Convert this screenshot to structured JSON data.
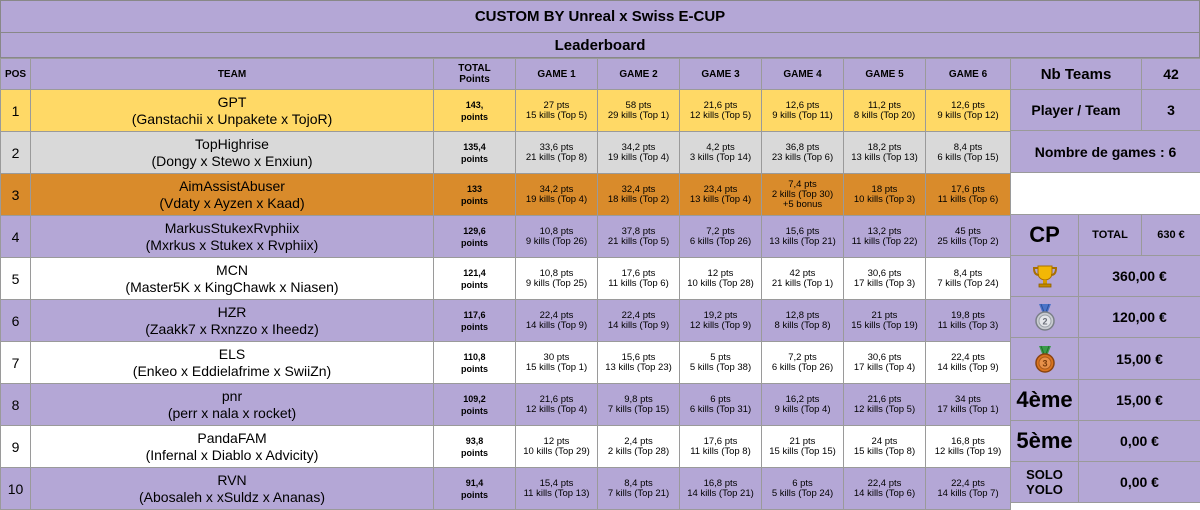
{
  "title": "CUSTOM BY Unreal x Swiss E-CUP",
  "subtitle": "Leaderboard",
  "headers": {
    "pos": "POS",
    "team": "TEAM",
    "total_line1": "TOTAL",
    "total_line2": "Points",
    "games": [
      "GAME 1",
      "GAME 2",
      "GAME 3",
      "GAME 4",
      "GAME 5",
      "GAME 6"
    ]
  },
  "rows": [
    {
      "pos": "1",
      "name": "GPT",
      "players": "(Ganstachii x Unpakete x TojoR)",
      "total": "143,",
      "total_unit": "points",
      "style": "gold",
      "games": [
        [
          "27 pts",
          "15 kills (Top 5)"
        ],
        [
          "58 pts",
          "29 kills (Top 1)"
        ],
        [
          "21,6 pts",
          "12 kills (Top 5)"
        ],
        [
          "12,6 pts",
          "9 kills (Top 11)"
        ],
        [
          "11,2 pts",
          "8 kills (Top 20)"
        ],
        [
          "12,6 pts",
          "9 kills (Top 12)"
        ]
      ]
    },
    {
      "pos": "2",
      "name": "TopHighrise",
      "players": "(Dongy x Stewo x Enxiun)",
      "total": "135,4",
      "total_unit": "points",
      "style": "silver",
      "games": [
        [
          "33,6 pts",
          "21 kills (Top 8)"
        ],
        [
          "34,2 pts",
          "19 kills (Top 4)"
        ],
        [
          "4,2 pts",
          "3 kills (Top 14)"
        ],
        [
          "36,8 pts",
          "23 kills (Top 6)"
        ],
        [
          "18,2 pts",
          "13 kills (Top 13)"
        ],
        [
          "8,4 pts",
          "6 kills (Top 15)"
        ]
      ]
    },
    {
      "pos": "3",
      "name": "AimAssistAbuser",
      "players": "(Vdaty x Ayzen x Kaad)",
      "total": "133",
      "total_unit": "points",
      "style": "bronze",
      "games": [
        [
          "34,2 pts",
          "19 kills (Top 4)"
        ],
        [
          "32,4 pts",
          "18 kills (Top 2)"
        ],
        [
          "23,4 pts",
          "13 kills (Top 4)"
        ],
        [
          "7,4 pts",
          "2 kills (Top 30)",
          "+5 bonus"
        ],
        [
          "18 pts",
          "10 kills (Top 3)"
        ],
        [
          "17,6 pts",
          "11 kills (Top 6)"
        ]
      ]
    },
    {
      "pos": "4",
      "name": "MarkusStukexRvphiix",
      "players": "(Mxrkus x Stukex x Rvphiix)",
      "total": "129,6",
      "total_unit": "points",
      "style": "purple",
      "games": [
        [
          "10,8 pts",
          "9 kills (Top 26)"
        ],
        [
          "37,8 pts",
          "21 kills (Top 5)"
        ],
        [
          "7,2 pts",
          "6 kills (Top 26)"
        ],
        [
          "15,6 pts",
          "13 kills (Top 21)"
        ],
        [
          "13,2 pts",
          "11 kills (Top 22)"
        ],
        [
          "45 pts",
          "25 kills (Top 2)"
        ]
      ]
    },
    {
      "pos": "5",
      "name": "MCN",
      "players": "(Master5K x KingChawk x Niasen)",
      "total": "121,4",
      "total_unit": "points",
      "style": "white",
      "games": [
        [
          "10,8 pts",
          "9 kills (Top 25)"
        ],
        [
          "17,6 pts",
          "11 kills (Top 6)"
        ],
        [
          "12 pts",
          "10 kills (Top 28)"
        ],
        [
          "42 pts",
          "21 kills (Top 1)"
        ],
        [
          "30,6 pts",
          "17 kills (Top 3)"
        ],
        [
          "8,4 pts",
          "7 kills (Top 24)"
        ]
      ]
    },
    {
      "pos": "6",
      "name": "HZR",
      "players": "(Zaakk7 x Rxnzzo x Iheedz)",
      "total": "117,6",
      "total_unit": "points",
      "style": "purple",
      "games": [
        [
          "22,4 pts",
          "14 kills (Top 9)"
        ],
        [
          "22,4 pts",
          "14 kills (Top 9)"
        ],
        [
          "19,2 pts",
          "12 kills (Top 9)"
        ],
        [
          "12,8 pts",
          "8 kills (Top 8)"
        ],
        [
          "21 pts",
          "15 kills (Top 19)"
        ],
        [
          "19,8 pts",
          "11 kills (Top 3)"
        ]
      ]
    },
    {
      "pos": "7",
      "name": "ELS",
      "players": "(Enkeo x Eddielafrime x SwiiZn)",
      "total": "110,8",
      "total_unit": "points",
      "style": "white",
      "games": [
        [
          "30 pts",
          "15 kills (Top 1)"
        ],
        [
          "15,6 pts",
          "13 kills (Top 23)"
        ],
        [
          "5 pts",
          "5 kills (Top 38)"
        ],
        [
          "7,2 pts",
          "6 kills (Top 26)"
        ],
        [
          "30,6 pts",
          "17 kills (Top 4)"
        ],
        [
          "22,4 pts",
          "14 kills (Top 9)"
        ]
      ]
    },
    {
      "pos": "8",
      "name": "pnr",
      "players": "(perr x nala x rocket)",
      "total": "109,2",
      "total_unit": "points",
      "style": "purple",
      "games": [
        [
          "21,6 pts",
          "12 kills (Top 4)"
        ],
        [
          "9,8 pts",
          "7 kills (Top 15)"
        ],
        [
          "6 pts",
          "6 kills (Top 31)"
        ],
        [
          "16,2 pts",
          "9 kills (Top 4)"
        ],
        [
          "21,6 pts",
          "12 kills (Top 5)"
        ],
        [
          "34 pts",
          "17 kills (Top 1)"
        ]
      ]
    },
    {
      "pos": "9",
      "name": "PandaFAM",
      "players": "(Infernal x Diablo x Advicity)",
      "total": "93,8",
      "total_unit": "points",
      "style": "white",
      "games": [
        [
          "12 pts",
          "10 kills (Top 29)"
        ],
        [
          "2,4 pts",
          "2 kills (Top 28)"
        ],
        [
          "17,6 pts",
          "11 kills (Top 8)"
        ],
        [
          "21 pts",
          "15 kills (Top 15)"
        ],
        [
          "24 pts",
          "15 kills (Top 8)"
        ],
        [
          "16,8 pts",
          "12 kills (Top 19)"
        ]
      ]
    },
    {
      "pos": "10",
      "name": "RVN",
      "players": "(Abosaleh x xSuldz x Ananas)",
      "total": "91,4",
      "total_unit": "points",
      "style": "purple",
      "games": [
        [
          "15,4 pts",
          "11 kills (Top 13)"
        ],
        [
          "8,4 pts",
          "7 kills (Top 21)"
        ],
        [
          "16,8 pts",
          "14 kills (Top 21)"
        ],
        [
          "6 pts",
          "5 kills (Top 24)"
        ],
        [
          "22,4 pts",
          "14 kills (Top 6)"
        ],
        [
          "22,4 pts",
          "14 kills (Top 7)"
        ]
      ]
    }
  ],
  "side": {
    "nb_teams_label": "Nb Teams",
    "nb_teams_value": "42",
    "player_team_label": "Player / Team",
    "player_team_value": "3",
    "nb_games_label": "Nombre de games : 6",
    "cp_label": "CP",
    "total_label": "TOTAL",
    "total_value": "630 €",
    "prizes": [
      {
        "place": "1",
        "icon": "gold-trophy-icon",
        "amount": "360,00 €"
      },
      {
        "place": "2",
        "icon": "silver-medal-icon",
        "amount": "120,00 €"
      },
      {
        "place": "3",
        "icon": "bronze-medal-icon",
        "amount": "15,00 €"
      },
      {
        "place": "4ème",
        "amount": "15,00 €"
      },
      {
        "place": "5ème",
        "amount": "0,00 €"
      },
      {
        "place_line1": "SOLO",
        "place_line2": "YOLO",
        "amount": "0,00 €"
      }
    ]
  },
  "colors": {
    "purple": "#b4a7d6",
    "gold": "#ffd966",
    "silver": "#d9d9d9",
    "bronze": "#d98b2b",
    "white": "#ffffff"
  }
}
